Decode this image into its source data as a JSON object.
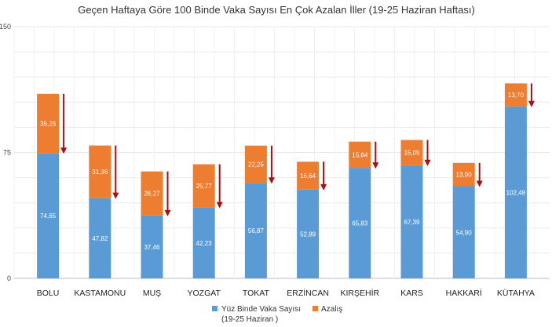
{
  "chart_data": {
    "type": "bar",
    "stacked": true,
    "title": "Geçen Haftaya Göre 100 Binde Vaka Sayısı En Çok Azalan İller (19-25 Haziran Haftası)",
    "categories": [
      "BOLU",
      "KASTAMONU",
      "MUŞ",
      "YOZGAT",
      "TOKAT",
      "ERZİNCAN",
      "KIRŞEHİR",
      "KARS",
      "HAKKARİ",
      "KÜTAHYA"
    ],
    "series": [
      {
        "name": "Yüz Binde Vaka Sayısı (19-25 Haziran )",
        "name_line1": "Yüz Binde Vaka Sayısı",
        "name_line2": "(19-25 Haziran )",
        "color": "#5B9BD5",
        "values": [
          74.65,
          47.82,
          37.46,
          42.23,
          56.87,
          52.89,
          65.83,
          67.39,
          54.9,
          102.48
        ],
        "labels": [
          "74,65",
          "47,82",
          "37,46",
          "42,23",
          "56,87",
          "52,89",
          "65,83",
          "67,39",
          "54,90",
          "102,48"
        ]
      },
      {
        "name": "Azalış",
        "color": "#ED7D31",
        "values": [
          35.26,
          31.36,
          26.27,
          25.77,
          22.25,
          16.64,
          15.64,
          15.09,
          13.9,
          13.7
        ],
        "labels": [
          "35,26",
          "31,36",
          "26,27",
          "25,77",
          "22,25",
          "16,64",
          "15,64",
          "15,09",
          "13,90",
          "13,70"
        ]
      }
    ],
    "ylim": [
      0,
      150
    ],
    "yticks": [
      0,
      75,
      150
    ],
    "grid": true,
    "legend": "bottom",
    "arrow_color": "#A50F15"
  }
}
